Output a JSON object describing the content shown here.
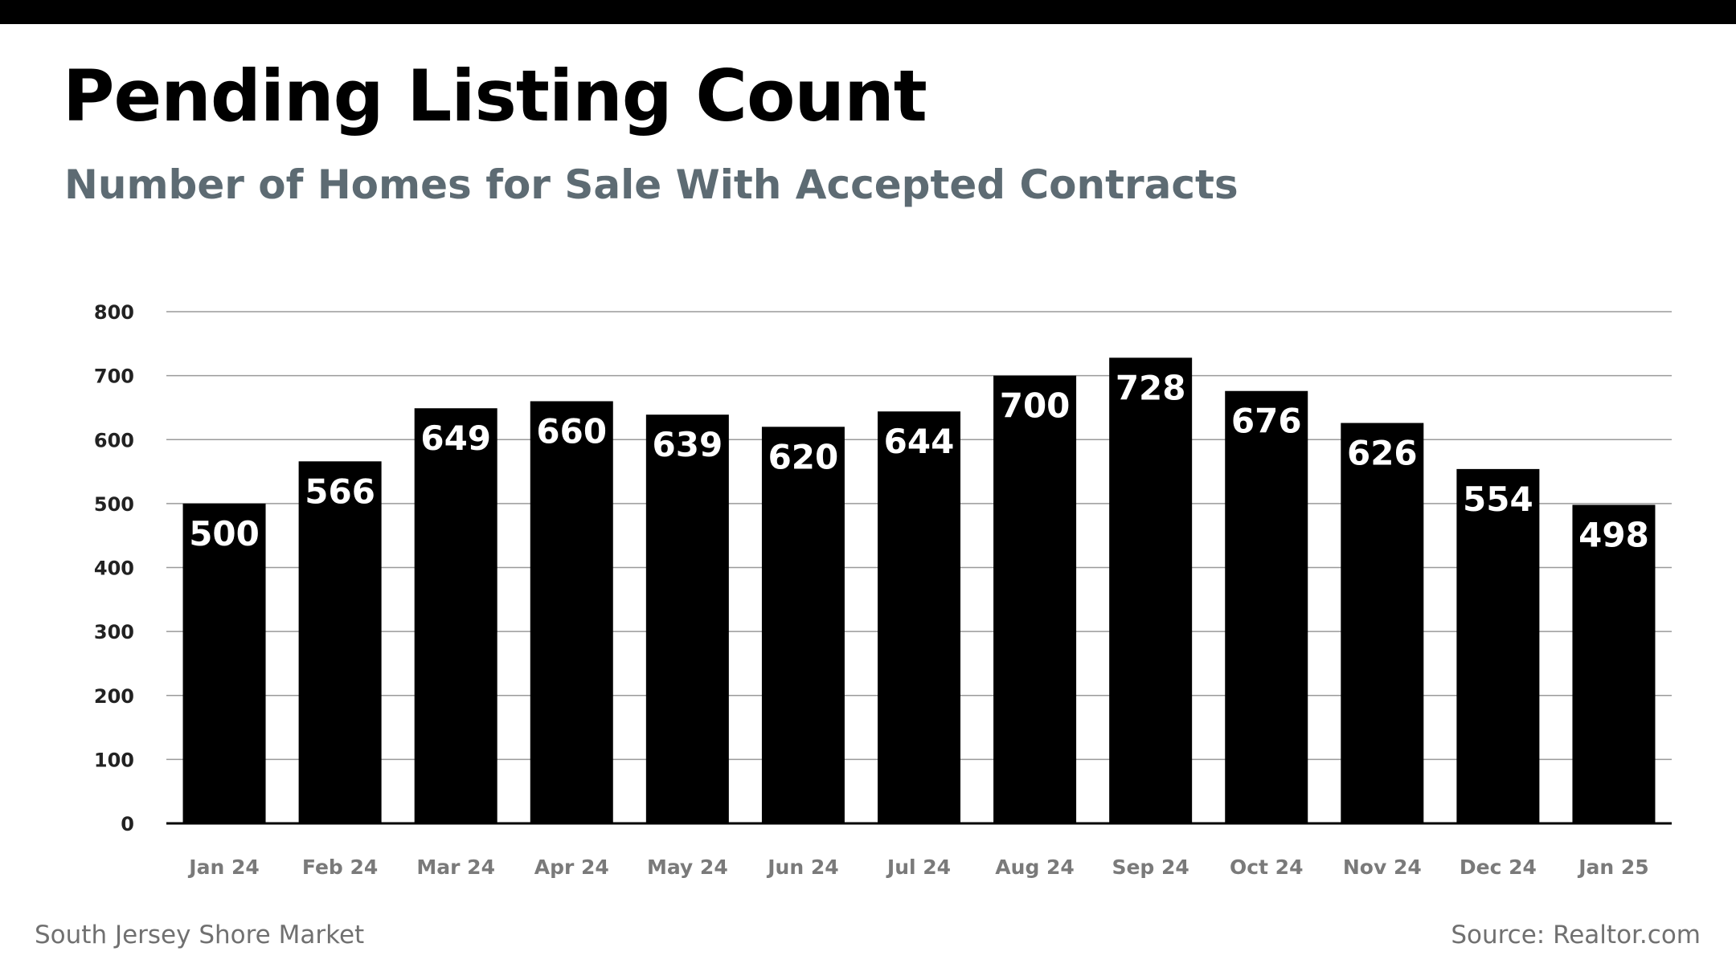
{
  "title": "Pending Listing Count",
  "subtitle": "Number of Homes for Sale With Accepted Contracts",
  "footer": {
    "market": "South Jersey Shore Market",
    "source": "Source: Realtor.com"
  },
  "colors": {
    "bar": "#000000",
    "bar_label": "#ffffff",
    "subtitle": "#5d6b73",
    "axis_label": "#7a7a7a",
    "gridline": "#9a9a9a"
  },
  "chart_data": {
    "type": "bar",
    "title": "Pending Listing Count",
    "subtitle": "Number of Homes for Sale With Accepted Contracts",
    "xlabel": "",
    "ylabel": "",
    "categories": [
      "Jan 24",
      "Feb 24",
      "Mar 24",
      "Apr 24",
      "May 24",
      "Jun 24",
      "Jul 24",
      "Aug 24",
      "Sep 24",
      "Oct 24",
      "Nov 24",
      "Dec 24",
      "Jan 25"
    ],
    "values": [
      500,
      566,
      649,
      660,
      639,
      620,
      644,
      700,
      728,
      676,
      626,
      554,
      498
    ],
    "ylim": [
      0,
      800
    ],
    "yticks": [
      "0",
      "100",
      "200",
      "300",
      "400",
      "500",
      "600",
      "700",
      "800"
    ],
    "grid": true,
    "data_labels": "inside-top"
  }
}
